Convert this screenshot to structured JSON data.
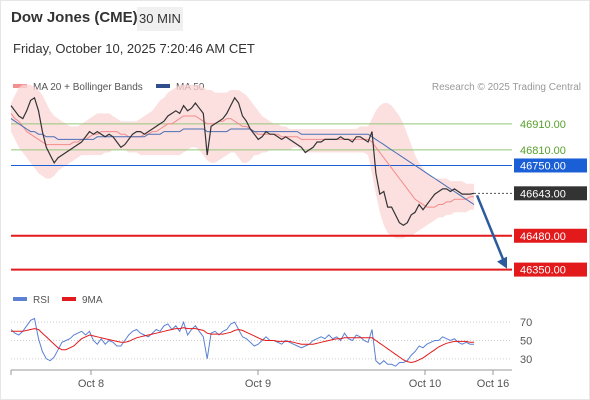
{
  "header": {
    "title": "Dow Jones (CME)",
    "timeframe": "30 MIN",
    "datetime": "Friday, October 10, 2025 7:20:46 AM CET"
  },
  "colors": {
    "bollinger": "#f48f8f",
    "ma20": "#f28b8b",
    "ma50": "#4a6fb5",
    "price": "#333333",
    "support": "#e31a1c",
    "green_level": "#94c77a",
    "blue_level": "#1a5fd6",
    "current_tag": "#333333",
    "arrow": "#2c5a9e",
    "rsi": "#5b80d4",
    "rsi_ma": "#e31a1c"
  },
  "chart_data": [
    {
      "type": "line",
      "name": "price",
      "legend": [
        {
          "label": "MA 20 + Bollinger Bands",
          "color": "#f48f8f"
        },
        {
          "label": "MA 50",
          "color": "#2e4f8c"
        }
      ],
      "research_credit": "Research © 2025 Trading Central",
      "x_ticks": [
        "Oct 8",
        "Oct 9",
        "Oct 10",
        "Oct 16"
      ],
      "ylim": [
        46310,
        46990
      ],
      "levels": [
        {
          "value": 46910.0,
          "label": "46910.00",
          "kind": "resistance"
        },
        {
          "value": 46810.0,
          "label": "46810.00",
          "kind": "resistance"
        },
        {
          "value": 46750.0,
          "label": "46750.00",
          "kind": "pivot"
        },
        {
          "value": 46643.0,
          "label": "46643.00",
          "kind": "current"
        },
        {
          "value": 46480.0,
          "label": "46480.00",
          "kind": "support"
        },
        {
          "value": 46350.0,
          "label": "46350.00",
          "kind": "support"
        }
      ],
      "price": [
        46980,
        46960,
        46940,
        46930,
        46960,
        47000,
        47010,
        46960,
        46880,
        46820,
        46790,
        46760,
        46780,
        46790,
        46800,
        46810,
        46820,
        46830,
        46840,
        46860,
        46880,
        46870,
        46880,
        46870,
        46860,
        46870,
        46860,
        46840,
        46820,
        46830,
        46850,
        46870,
        46880,
        46880,
        46870,
        46880,
        46890,
        46900,
        46910,
        46920,
        46940,
        46950,
        46960,
        46950,
        46980,
        46960,
        46970,
        46990,
        46970,
        46950,
        46790,
        46900,
        46910,
        46920,
        46930,
        46950,
        46980,
        47010,
        46990,
        46940,
        46920,
        46890,
        46870,
        46850,
        46860,
        46880,
        46870,
        46870,
        46860,
        46850,
        46860,
        46850,
        46840,
        46830,
        46820,
        46800,
        46810,
        46820,
        46840,
        46840,
        46850,
        46850,
        46850,
        46850,
        46860,
        46850,
        46850,
        46840,
        46860,
        46860,
        46850,
        46840,
        46880,
        46720,
        46640,
        46650,
        46590,
        46590,
        46560,
        46530,
        46520,
        46530,
        46560,
        46570,
        46600,
        46580,
        46600,
        46620,
        46640,
        46650,
        46660,
        46660,
        46650,
        46660,
        46650,
        46640,
        46640,
        46640,
        46643
      ],
      "ma20": [
        46950,
        46930,
        46920,
        46900,
        46880,
        46870,
        46860,
        46850,
        46840,
        46830,
        46830,
        46830,
        46830,
        46830,
        46830,
        46830,
        46840,
        46840,
        46850,
        46850,
        46860,
        46870,
        46870,
        46880,
        46880,
        46880,
        46880,
        46880,
        46870,
        46870,
        46860,
        46860,
        46860,
        46860,
        46870,
        46870,
        46880,
        46880,
        46890,
        46900,
        46910,
        46910,
        46920,
        46930,
        46940,
        46940,
        46940,
        46940,
        46930,
        46920,
        46910,
        46910,
        46910,
        46920,
        46920,
        46930,
        46930,
        46920,
        46910,
        46900,
        46900,
        46890,
        46880,
        46870,
        46870,
        46870,
        46870,
        46870,
        46870,
        46860,
        46860,
        46860,
        46860,
        46860,
        46850,
        46850,
        46850,
        46850,
        46850,
        46850,
        46850,
        46850,
        46850,
        46850,
        46850,
        46850,
        46850,
        46850,
        46850,
        46850,
        46850,
        46850,
        46840,
        46820,
        46800,
        46780,
        46760,
        46740,
        46720,
        46700,
        46680,
        46660,
        46640,
        46620,
        46610,
        46600,
        46590,
        46590,
        46590,
        46600,
        46600,
        46610,
        46610,
        46620,
        46620,
        46620,
        46620,
        46630,
        46630
      ],
      "ma50": [
        46930,
        46920,
        46910,
        46900,
        46890,
        46880,
        46880,
        46870,
        46870,
        46860,
        46860,
        46860,
        46850,
        46850,
        46850,
        46850,
        46850,
        46850,
        46850,
        46850,
        46850,
        46850,
        46860,
        46860,
        46860,
        46860,
        46860,
        46860,
        46860,
        46860,
        46860,
        46860,
        46860,
        46860,
        46860,
        46870,
        46870,
        46870,
        46870,
        46880,
        46880,
        46880,
        46880,
        46880,
        46890,
        46890,
        46890,
        46890,
        46890,
        46890,
        46880,
        46880,
        46880,
        46880,
        46880,
        46880,
        46890,
        46890,
        46890,
        46890,
        46890,
        46890,
        46880,
        46880,
        46880,
        46880,
        46880,
        46880,
        46880,
        46880,
        46880,
        46880,
        46880,
        46880,
        46870,
        46870,
        46870,
        46870,
        46870,
        46870,
        46870,
        46870,
        46870,
        46870,
        46870,
        46870,
        46870,
        46870,
        46870,
        46870,
        46870,
        46870,
        46860,
        46850,
        46840,
        46830,
        46820,
        46810,
        46800,
        46790,
        46780,
        46770,
        46760,
        46750,
        46740,
        46730,
        46720,
        46710,
        46700,
        46690,
        46680,
        46670,
        46660,
        46650,
        46640,
        46630,
        46620,
        46610,
        46600
      ],
      "bollinger_upper": [
        46990,
        47020,
        47050,
        47060,
        47060,
        47060,
        47050,
        47040,
        47020,
        46990,
        46960,
        46940,
        46930,
        46920,
        46910,
        46900,
        46900,
        46900,
        46910,
        46920,
        46930,
        46940,
        46950,
        46950,
        46950,
        46950,
        46940,
        46930,
        46920,
        46920,
        46920,
        46920,
        46920,
        46930,
        46940,
        46950,
        46960,
        46980,
        47000,
        47010,
        47030,
        47040,
        47050,
        47060,
        47060,
        47060,
        47060,
        47060,
        47060,
        47050,
        47040,
        47040,
        47030,
        47030,
        47030,
        47030,
        47040,
        47040,
        47040,
        47030,
        47020,
        47000,
        46980,
        46960,
        46940,
        46930,
        46920,
        46910,
        46910,
        46900,
        46900,
        46890,
        46890,
        46890,
        46890,
        46890,
        46890,
        46890,
        46890,
        46890,
        46890,
        46890,
        46890,
        46890,
        46890,
        46890,
        46890,
        46890,
        46890,
        46900,
        46900,
        46900,
        46930,
        46960,
        46980,
        46990,
        46990,
        46980,
        46960,
        46940,
        46910,
        46870,
        46830,
        46790,
        46760,
        46740,
        46720,
        46710,
        46700,
        46700,
        46700,
        46700,
        46690,
        46690,
        46690,
        46690,
        46680,
        46680,
        46680
      ],
      "bollinger_lower": [
        46880,
        46850,
        46820,
        46800,
        46780,
        46760,
        46740,
        46720,
        46710,
        46700,
        46700,
        46710,
        46730,
        46740,
        46750,
        46760,
        46770,
        46780,
        46790,
        46790,
        46790,
        46790,
        46790,
        46790,
        46800,
        46800,
        46810,
        46810,
        46810,
        46810,
        46800,
        46800,
        46800,
        46790,
        46790,
        46790,
        46790,
        46790,
        46790,
        46790,
        46790,
        46790,
        46790,
        46790,
        46800,
        46810,
        46820,
        46820,
        46810,
        46790,
        46770,
        46760,
        46760,
        46770,
        46780,
        46790,
        46800,
        46800,
        46780,
        46760,
        46760,
        46770,
        46790,
        46790,
        46800,
        46800,
        46810,
        46810,
        46810,
        46810,
        46810,
        46810,
        46820,
        46820,
        46810,
        46800,
        46800,
        46800,
        46800,
        46800,
        46800,
        46800,
        46800,
        46800,
        46800,
        46800,
        46800,
        46800,
        46800,
        46800,
        46800,
        46790,
        46720,
        46640,
        46570,
        46520,
        46490,
        46480,
        46470,
        46470,
        46470,
        46480,
        46480,
        46490,
        46500,
        46510,
        46520,
        46530,
        46540,
        46550,
        46550,
        46560,
        46560,
        46570,
        46570,
        46570,
        46570,
        46580,
        46580
      ]
    },
    {
      "type": "line",
      "name": "rsi",
      "legend": [
        {
          "label": "RSI",
          "color": "#5b80d4"
        },
        {
          "label": "9MA",
          "color": "#e31a1c"
        }
      ],
      "ylim": [
        20,
        80
      ],
      "y_ticks": [
        70,
        50,
        30
      ],
      "rsi": [
        62,
        58,
        56,
        60,
        66,
        72,
        74,
        52,
        38,
        30,
        28,
        32,
        40,
        48,
        50,
        52,
        56,
        58,
        60,
        56,
        60,
        50,
        46,
        52,
        46,
        50,
        48,
        44,
        44,
        50,
        56,
        60,
        62,
        58,
        56,
        54,
        58,
        62,
        60,
        66,
        68,
        62,
        66,
        60,
        70,
        56,
        62,
        66,
        60,
        54,
        30,
        58,
        60,
        56,
        60,
        62,
        68,
        70,
        62,
        54,
        52,
        48,
        44,
        46,
        50,
        54,
        50,
        50,
        48,
        46,
        50,
        48,
        46,
        44,
        42,
        44,
        46,
        50,
        52,
        54,
        52,
        56,
        52,
        54,
        50,
        58,
        52,
        50,
        56,
        54,
        50,
        48,
        62,
        28,
        24,
        28,
        24,
        24,
        22,
        26,
        26,
        28,
        34,
        38,
        44,
        42,
        46,
        48,
        50,
        50,
        54,
        52,
        50,
        52,
        48,
        46,
        48,
        46,
        46
      ],
      "ma9": [
        60,
        60,
        60,
        60,
        61,
        62,
        63,
        62,
        58,
        54,
        50,
        46,
        42,
        40,
        40,
        42,
        44,
        48,
        52,
        54,
        56,
        55,
        54,
        53,
        52,
        51,
        50,
        49,
        48,
        48,
        49,
        51,
        53,
        54,
        55,
        56,
        57,
        58,
        59,
        60,
        61,
        62,
        63,
        63,
        64,
        63,
        63,
        63,
        62,
        61,
        58,
        57,
        57,
        57,
        57,
        58,
        59,
        61,
        62,
        61,
        59,
        57,
        55,
        53,
        51,
        50,
        50,
        50,
        49,
        49,
        49,
        49,
        48,
        47,
        46,
        46,
        46,
        46,
        47,
        48,
        49,
        50,
        51,
        52,
        52,
        53,
        53,
        53,
        53,
        53,
        53,
        53,
        53,
        50,
        47,
        44,
        41,
        38,
        35,
        32,
        29,
        27,
        26,
        27,
        29,
        31,
        34,
        37,
        40,
        43,
        45,
        47,
        48,
        49,
        49,
        49,
        49,
        48,
        48
      ]
    }
  ]
}
